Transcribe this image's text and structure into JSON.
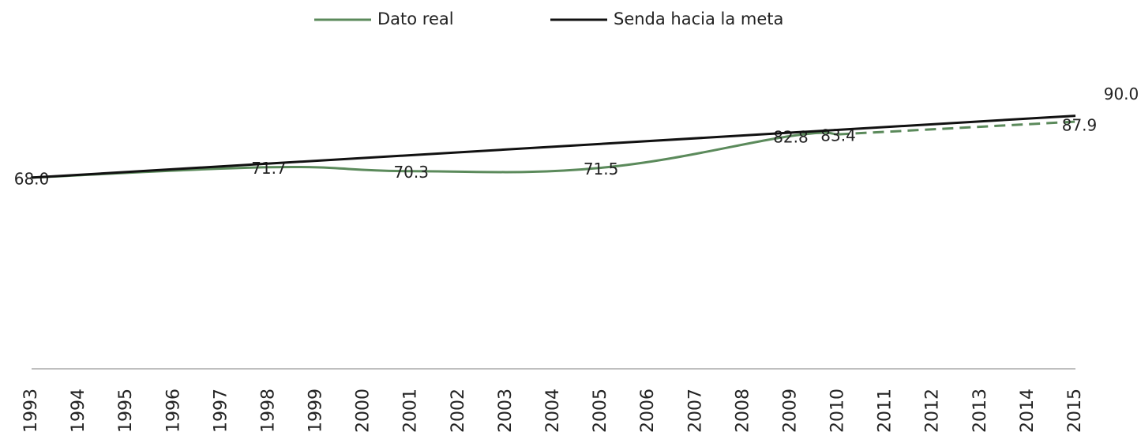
{
  "chart_data": {
    "type": "line",
    "xlim": [
      1993,
      2015
    ],
    "xticks": [
      1993,
      1994,
      1995,
      1996,
      1997,
      1998,
      1999,
      2000,
      2001,
      2002,
      2003,
      2004,
      2005,
      2006,
      2007,
      2008,
      2009,
      2010,
      2011,
      2012,
      2013,
      2014,
      2015
    ],
    "ylim": [
      0,
      100
    ],
    "series": [
      {
        "name": "Dato real",
        "color": "#5b8a5b",
        "smooth": true,
        "x": [
          1993,
          1998,
          2001,
          2005,
          2009,
          2010
        ],
        "values": [
          68.0,
          71.7,
          70.3,
          71.5,
          82.8,
          83.4
        ],
        "value_labels": [
          "68.0",
          "71.7",
          "70.3",
          "71.5",
          "82.8",
          "83.4"
        ]
      },
      {
        "name": "Senda hacia la meta",
        "color": "#111111",
        "smooth": false,
        "x": [
          1993,
          2015
        ],
        "values": [
          68.0,
          90.0
        ],
        "value_labels": [
          null,
          "90.0"
        ]
      }
    ],
    "projection": {
      "color": "#5b8a5b",
      "dashed": true,
      "x": [
        2010,
        2015
      ],
      "values": [
        83.4,
        87.9
      ],
      "value_labels": [
        null,
        "87.9"
      ]
    }
  }
}
